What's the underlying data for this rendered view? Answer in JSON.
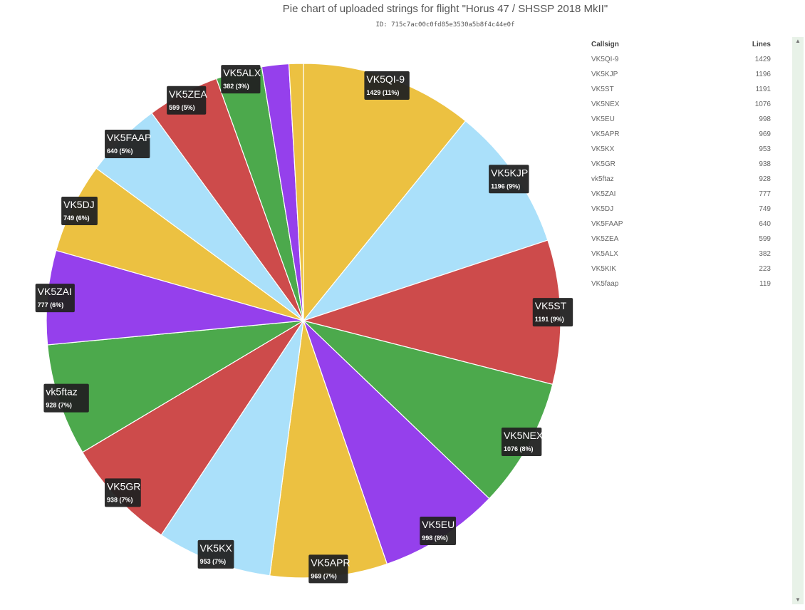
{
  "header": {
    "title": "Pie chart of uploaded strings for flight \"Horus 47 / SHSSP 2018 MkII\"",
    "id_text": "ID: 715c7ac00c0fd85e3530a5b8f4c44e0f"
  },
  "table": {
    "col_callsign": "Callsign",
    "col_lines": "Lines",
    "rows": [
      {
        "callsign": "VK5QI-9",
        "lines": "1429"
      },
      {
        "callsign": "VK5KJP",
        "lines": "1196"
      },
      {
        "callsign": "VK5ST",
        "lines": "1191"
      },
      {
        "callsign": "VK5NEX",
        "lines": "1076"
      },
      {
        "callsign": "VK5EU",
        "lines": "998"
      },
      {
        "callsign": "VK5APR",
        "lines": "969"
      },
      {
        "callsign": "VK5KX",
        "lines": "953"
      },
      {
        "callsign": "VK5GR",
        "lines": "938"
      },
      {
        "callsign": "vk5ftaz",
        "lines": "928"
      },
      {
        "callsign": "VK5ZAI",
        "lines": "777"
      },
      {
        "callsign": "VK5DJ",
        "lines": "749"
      },
      {
        "callsign": "VK5FAAP",
        "lines": "640"
      },
      {
        "callsign": "VK5ZEA",
        "lines": "599"
      },
      {
        "callsign": "VK5ALX",
        "lines": "382"
      },
      {
        "callsign": "VK5KIK",
        "lines": "223"
      },
      {
        "callsign": "VK5faap",
        "lines": "119"
      }
    ]
  },
  "chart_data": {
    "type": "pie",
    "title": "Pie chart of uploaded strings for flight \"Horus 47 / SHSSP 2018 MkII\"",
    "categories": [
      "VK5QI-9",
      "VK5KJP",
      "VK5ST",
      "VK5NEX",
      "VK5EU",
      "VK5APR",
      "VK5KX",
      "VK5GR",
      "vk5ftaz",
      "VK5ZAI",
      "VK5DJ",
      "VK5FAAP",
      "VK5ZEA",
      "VK5ALX",
      "VK5KIK",
      "VK5faap"
    ],
    "values": [
      1429,
      1196,
      1191,
      1076,
      998,
      969,
      953,
      938,
      928,
      777,
      749,
      640,
      599,
      382,
      223,
      119
    ],
    "value_labels": [
      "1429 (11%)",
      "1196 (9%)",
      "1191 (9%)",
      "1076 (8%)",
      "998 (8%)",
      "969 (7%)",
      "953 (7%)",
      "938 (7%)",
      "928 (7%)",
      "777 (6%)",
      "749 (6%)",
      "640 (5%)",
      "599 (5%)",
      "382 (3%)",
      "",
      ""
    ],
    "colors": [
      "#ecc141",
      "#aae0fa",
      "#cd4b4b",
      "#4ca94c",
      "#9540ec"
    ],
    "direction": "clockwise",
    "start": "top"
  }
}
